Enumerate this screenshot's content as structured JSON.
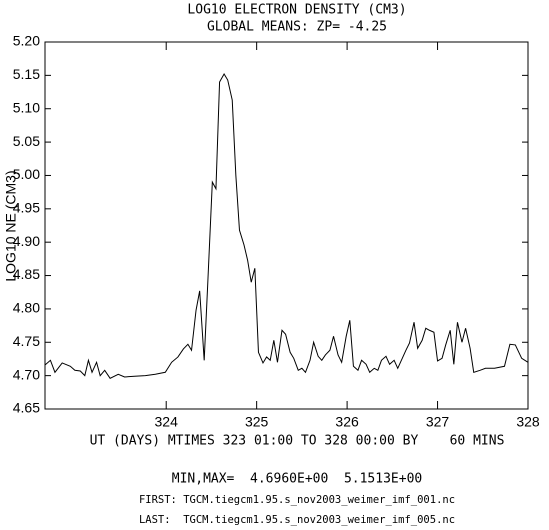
{
  "chart_data": {
    "type": "line",
    "title": "LOG10 ELECTRON DENSITY (CM3)",
    "subtitle": "GLOBAL MEANS: ZP= -4.25",
    "ylabel": "LOG10 NE (CM3)",
    "xlabel": "UT (DAYS) MTIMES 323 01:00 TO 328 00:00 BY    60 MINS",
    "notes": [
      "MIN,MAX=  4.6960E+00  5.1513E+00",
      "FIRST: TGCM.tiegcm1.95.s_nov2003_weimer_imf_001.nc",
      "LAST:  TGCM.tiegcm1.95.s_nov2003_weimer_imf_005.nc"
    ],
    "xlim": [
      322.66,
      328
    ],
    "xticks": [
      324,
      325,
      326,
      327,
      328
    ],
    "ylim": [
      4.65,
      5.2
    ],
    "yticks": [
      4.65,
      {
        "value": 4.7,
        "label": "4.70"
      },
      4.75,
      {
        "value": 4.8,
        "label": "4.80"
      },
      4.85,
      {
        "value": 4.9,
        "label": "4.90"
      },
      4.95,
      {
        "value": 5.0,
        "label": "5.00"
      },
      5.05,
      {
        "value": 5.1,
        "label": "5.10"
      },
      5.15,
      {
        "value": 5.2,
        "label": "5.20"
      }
    ],
    "color": "#000000",
    "x": [
      322.66,
      322.72,
      322.77,
      322.85,
      322.94,
      322.99,
      323.05,
      323.1,
      323.14,
      323.18,
      323.23,
      323.27,
      323.32,
      323.38,
      323.47,
      323.54,
      323.65,
      323.77,
      323.88,
      323.99,
      324.06,
      324.13,
      324.19,
      324.24,
      324.28,
      324.33,
      324.37,
      324.42,
      324.46,
      324.51,
      324.55,
      324.59,
      324.64,
      324.68,
      324.73,
      324.77,
      324.81,
      324.86,
      324.9,
      324.94,
      324.98,
      325.02,
      325.07,
      325.11,
      325.15,
      325.19,
      325.23,
      325.28,
      325.32,
      325.37,
      325.41,
      325.46,
      325.5,
      325.54,
      325.59,
      325.63,
      325.68,
      325.72,
      325.76,
      325.81,
      325.85,
      325.9,
      325.94,
      325.99,
      326.03,
      326.07,
      326.12,
      326.16,
      326.21,
      326.25,
      326.3,
      326.34,
      326.38,
      326.43,
      326.47,
      326.52,
      326.56,
      326.6,
      326.65,
      326.69,
      326.74,
      326.78,
      326.83,
      326.87,
      326.91,
      326.96,
      327.0,
      327.05,
      327.09,
      327.14,
      327.18,
      327.22,
      327.27,
      327.31,
      327.36,
      327.4,
      327.47,
      327.53,
      327.63,
      327.74,
      327.8,
      327.86,
      327.93,
      328.0
    ],
    "values": [
      4.716,
      4.723,
      4.705,
      4.719,
      4.714,
      4.708,
      4.707,
      4.7,
      4.723,
      4.705,
      4.72,
      4.7,
      4.708,
      4.696,
      4.702,
      4.698,
      4.699,
      4.7,
      4.702,
      4.705,
      4.72,
      4.728,
      4.74,
      4.747,
      4.738,
      4.798,
      4.827,
      4.723,
      4.84,
      4.99,
      4.98,
      5.14,
      5.152,
      5.143,
      5.113,
      5.0,
      4.918,
      4.896,
      4.873,
      4.84,
      4.861,
      4.735,
      4.719,
      4.728,
      4.723,
      4.753,
      4.72,
      4.768,
      4.762,
      4.735,
      4.726,
      4.708,
      4.711,
      4.705,
      4.723,
      4.75,
      4.729,
      4.723,
      4.731,
      4.738,
      4.759,
      4.731,
      4.72,
      4.759,
      4.783,
      4.714,
      4.708,
      4.723,
      4.717,
      4.705,
      4.711,
      4.708,
      4.723,
      4.729,
      4.717,
      4.723,
      4.711,
      4.723,
      4.738,
      4.749,
      4.78,
      4.741,
      4.753,
      4.771,
      4.768,
      4.765,
      4.722,
      4.726,
      4.746,
      4.768,
      4.717,
      4.78,
      4.75,
      4.771,
      4.741,
      4.705,
      4.708,
      4.711,
      4.711,
      4.714,
      4.747,
      4.746,
      4.726,
      4.72
    ]
  }
}
